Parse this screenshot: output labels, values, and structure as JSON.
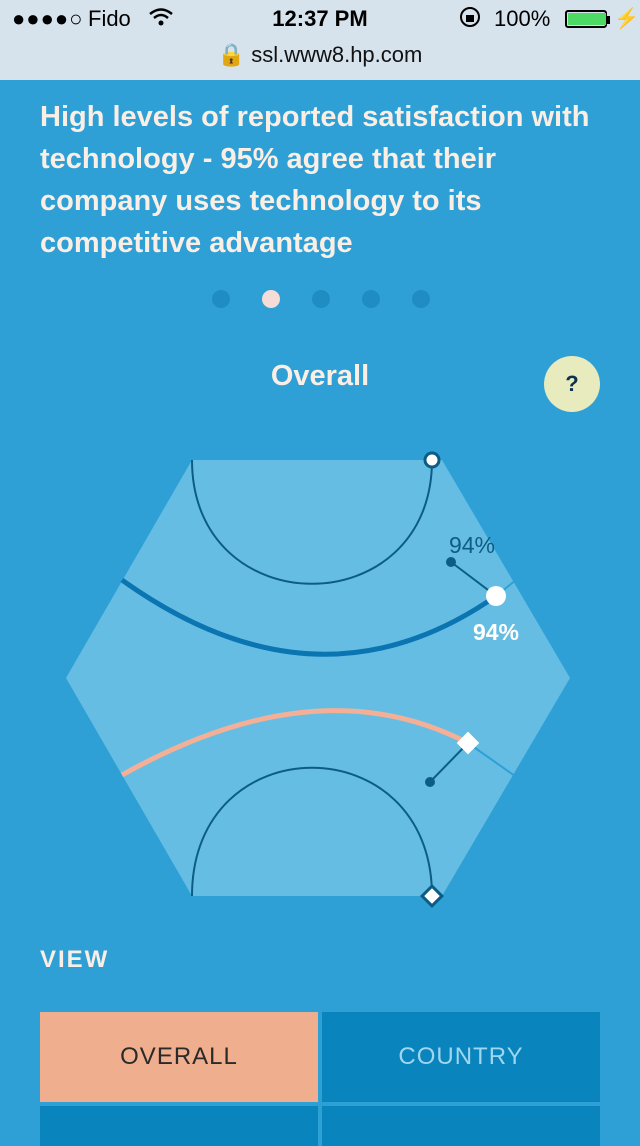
{
  "status": {
    "signal": "●●●●○",
    "carrier": "Fido",
    "time": "12:37 PM",
    "battery_percent": "100%",
    "url": "ssl.www8.hp.com"
  },
  "headline": "High levels of reported satisfaction with technology - 95% agree that their company uses technology to its competitive advantage",
  "pager": {
    "count": 5,
    "active_index": 1
  },
  "section_title": "Overall",
  "help_label": "?",
  "chart": {
    "upper_label_outer": "94%",
    "upper_label_inner": "94%",
    "colors": {
      "hex_fill": "#66bde3",
      "line_dark": "#0c5d85",
      "arc_blue": "#0a75b0",
      "arc_peach": "#f3b096"
    }
  },
  "view_label": "VIEW",
  "buttons": {
    "overall": "OVERALL",
    "country": "COUNTRY"
  }
}
